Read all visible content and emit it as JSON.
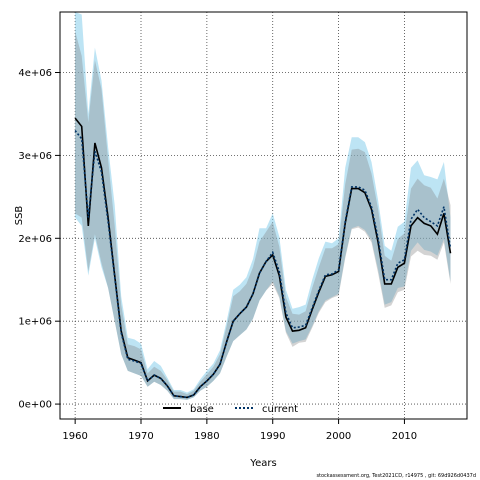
{
  "chart_data": {
    "type": "area",
    "xlabel": "Years",
    "ylabel": "SSB",
    "xlim": [
      1957.7,
      2019.5
    ],
    "ylim": [
      -180000,
      4730000
    ],
    "x_ticks": [
      1960,
      1970,
      1980,
      1990,
      2000,
      2010
    ],
    "x_tick_labels": [
      "1960",
      "1970",
      "1980",
      "1990",
      "2000",
      "2010"
    ],
    "y_ticks": [
      0,
      1000000,
      2000000,
      3000000,
      4000000
    ],
    "y_tick_labels": [
      "0e+00",
      "1e+06",
      "2e+06",
      "3e+06",
      "4e+06"
    ],
    "grid": true,
    "legend_position": "bottom-center",
    "colors": {
      "current_line": "#003366",
      "base_line": "#000000",
      "current_band": "#87ceeb",
      "base_band": "#808080"
    },
    "x": [
      1960,
      1961,
      1962,
      1963,
      1964,
      1965,
      1966,
      1967,
      1968,
      1969,
      1970,
      1971,
      1972,
      1973,
      1974,
      1975,
      1976,
      1977,
      1978,
      1979,
      1980,
      1981,
      1982,
      1983,
      1984,
      1985,
      1986,
      1987,
      1988,
      1989,
      1990,
      1991,
      1992,
      1993,
      1994,
      1995,
      1996,
      1997,
      1998,
      1999,
      2000,
      2001,
      2002,
      2003,
      2004,
      2005,
      2006,
      2007,
      2008,
      2009,
      2010,
      2011,
      2012,
      2013,
      2014,
      2015,
      2016,
      2017
    ],
    "series": [
      {
        "name": "base",
        "style": "solid",
        "values": [
          3450000,
          3350000,
          2150000,
          3150000,
          2850000,
          2250000,
          1550000,
          880000,
          560000,
          530000,
          500000,
          280000,
          350000,
          310000,
          220000,
          100000,
          90000,
          80000,
          110000,
          210000,
          280000,
          360000,
          480000,
          750000,
          1000000,
          1090000,
          1170000,
          1330000,
          1580000,
          1720000,
          1800000,
          1550000,
          1050000,
          880000,
          890000,
          920000,
          1140000,
          1350000,
          1540000,
          1560000,
          1600000,
          2180000,
          2600000,
          2600000,
          2550000,
          2350000,
          1950000,
          1450000,
          1450000,
          1650000,
          1700000,
          2150000,
          2250000,
          2180000,
          2150000,
          2050000,
          2300000,
          1820000
        ],
        "lower": [
          2300000,
          2250000,
          1600000,
          2050000,
          1700000,
          1400000,
          1000000,
          600000,
          400000,
          370000,
          340000,
          210000,
          270000,
          230000,
          160000,
          60000,
          60000,
          50000,
          80000,
          160000,
          210000,
          280000,
          370000,
          570000,
          760000,
          830000,
          900000,
          1030000,
          1250000,
          1370000,
          1450000,
          1280000,
          860000,
          690000,
          740000,
          750000,
          920000,
          1100000,
          1230000,
          1280000,
          1310000,
          1760000,
          2110000,
          2130000,
          2080000,
          1950000,
          1580000,
          1160000,
          1190000,
          1350000,
          1380000,
          1780000,
          1850000,
          1800000,
          1790000,
          1740000,
          1950000,
          1450000
        ],
        "upper": [
          4500000,
          4200000,
          3400000,
          4150000,
          3800000,
          2950000,
          2150000,
          1200000,
          720000,
          700000,
          660000,
          370000,
          450000,
          400000,
          290000,
          150000,
          150000,
          120000,
          160000,
          270000,
          360000,
          450000,
          600000,
          940000,
          1300000,
          1360000,
          1450000,
          1650000,
          1960000,
          2080000,
          2200000,
          1900000,
          1290000,
          1090000,
          1080000,
          1120000,
          1400000,
          1650000,
          1880000,
          1880000,
          1930000,
          2650000,
          3070000,
          3080000,
          3040000,
          2780000,
          2350000,
          1790000,
          1730000,
          1990000,
          2060000,
          2600000,
          2720000,
          2640000,
          2610000,
          2480000,
          2720000,
          2400000
        ]
      },
      {
        "name": "current",
        "style": "dotted",
        "values": [
          3300000,
          3200000,
          2250000,
          3050000,
          2800000,
          2200000,
          1530000,
          860000,
          540000,
          520000,
          490000,
          280000,
          350000,
          310000,
          220000,
          100000,
          90000,
          80000,
          110000,
          210000,
          280000,
          360000,
          480000,
          750000,
          1000000,
          1090000,
          1170000,
          1330000,
          1580000,
          1720000,
          1830000,
          1600000,
          1100000,
          920000,
          930000,
          950000,
          1160000,
          1370000,
          1560000,
          1570000,
          1620000,
          2200000,
          2620000,
          2620000,
          2580000,
          2380000,
          2000000,
          1500000,
          1500000,
          1700000,
          1740000,
          2230000,
          2350000,
          2250000,
          2200000,
          2150000,
          2380000,
          1880000
        ],
        "lower": [
          2250000,
          2150000,
          1550000,
          2000000,
          1650000,
          1400000,
          1000000,
          600000,
          400000,
          370000,
          340000,
          210000,
          270000,
          230000,
          160000,
          60000,
          60000,
          50000,
          80000,
          160000,
          210000,
          280000,
          370000,
          570000,
          760000,
          830000,
          900000,
          1030000,
          1250000,
          1370000,
          1480000,
          1300000,
          880000,
          730000,
          760000,
          780000,
          940000,
          1120000,
          1250000,
          1290000,
          1330000,
          1780000,
          2120000,
          2150000,
          2100000,
          1980000,
          1620000,
          1200000,
          1230000,
          1400000,
          1420000,
          1850000,
          1950000,
          1860000,
          1840000,
          1790000,
          1990000,
          1480000
        ],
        "upper": [
          4800000,
          4700000,
          3500000,
          4300000,
          3900000,
          3100000,
          2400000,
          1300000,
          800000,
          780000,
          730000,
          420000,
          520000,
          460000,
          320000,
          170000,
          170000,
          140000,
          180000,
          300000,
          400000,
          490000,
          650000,
          1000000,
          1380000,
          1440000,
          1530000,
          1750000,
          2120000,
          2120000,
          2300000,
          2020000,
          1380000,
          1150000,
          1170000,
          1200000,
          1500000,
          1760000,
          1960000,
          1940000,
          2000000,
          2850000,
          3220000,
          3220000,
          3160000,
          2920000,
          2460000,
          1910000,
          1850000,
          2140000,
          2200000,
          2850000,
          2940000,
          2760000,
          2740000,
          2710000,
          2920000,
          2250000
        ]
      }
    ]
  },
  "footer_text": "stockassessment.org, Test2021CD, r14975 , git: 69d926d0437d"
}
